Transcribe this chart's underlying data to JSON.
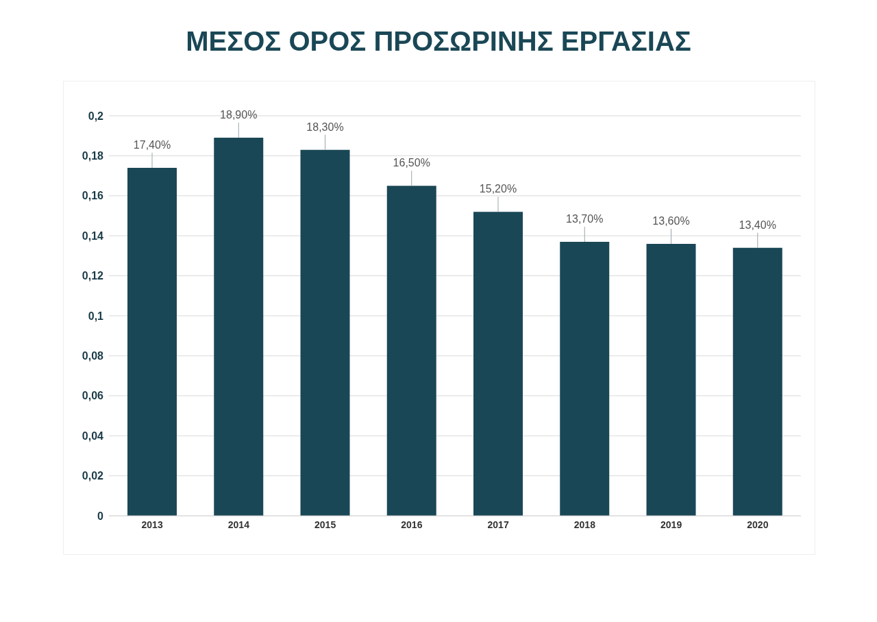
{
  "chart_data": {
    "type": "bar",
    "title": "ΜΕΣΟΣ ΟΡΟΣ ΠΡΟΣΩΡΙΝΗΣ ΕΡΓΑΣΙΑΣ",
    "categories": [
      "2013",
      "2014",
      "2015",
      "2016",
      "2017",
      "2018",
      "2019",
      "2020"
    ],
    "values": [
      0.174,
      0.189,
      0.183,
      0.165,
      0.152,
      0.137,
      0.136,
      0.134
    ],
    "value_labels": [
      "17,40%",
      "18,90%",
      "18,30%",
      "16,50%",
      "15,20%",
      "13,70%",
      "13,60%",
      "13,40%"
    ],
    "color": "#1a4756",
    "ylim": [
      0,
      0.2
    ],
    "yticks": [
      0,
      {
        "value": 0.02,
        "label": "0,02"
      },
      {
        "value": 0.04,
        "label": "0,04"
      },
      {
        "value": 0.06,
        "label": "0,06"
      },
      {
        "value": 0.08,
        "label": "0,08"
      },
      {
        "value": 0.1,
        "label": "0,1"
      },
      {
        "value": 0.12,
        "label": "0,12"
      },
      {
        "value": 0.14,
        "label": "0,14"
      },
      {
        "value": 0.16,
        "label": "0,16"
      },
      {
        "value": 0.18,
        "label": "0,18"
      },
      {
        "value": 0.2,
        "label": "0,2"
      }
    ],
    "grid": "y"
  }
}
